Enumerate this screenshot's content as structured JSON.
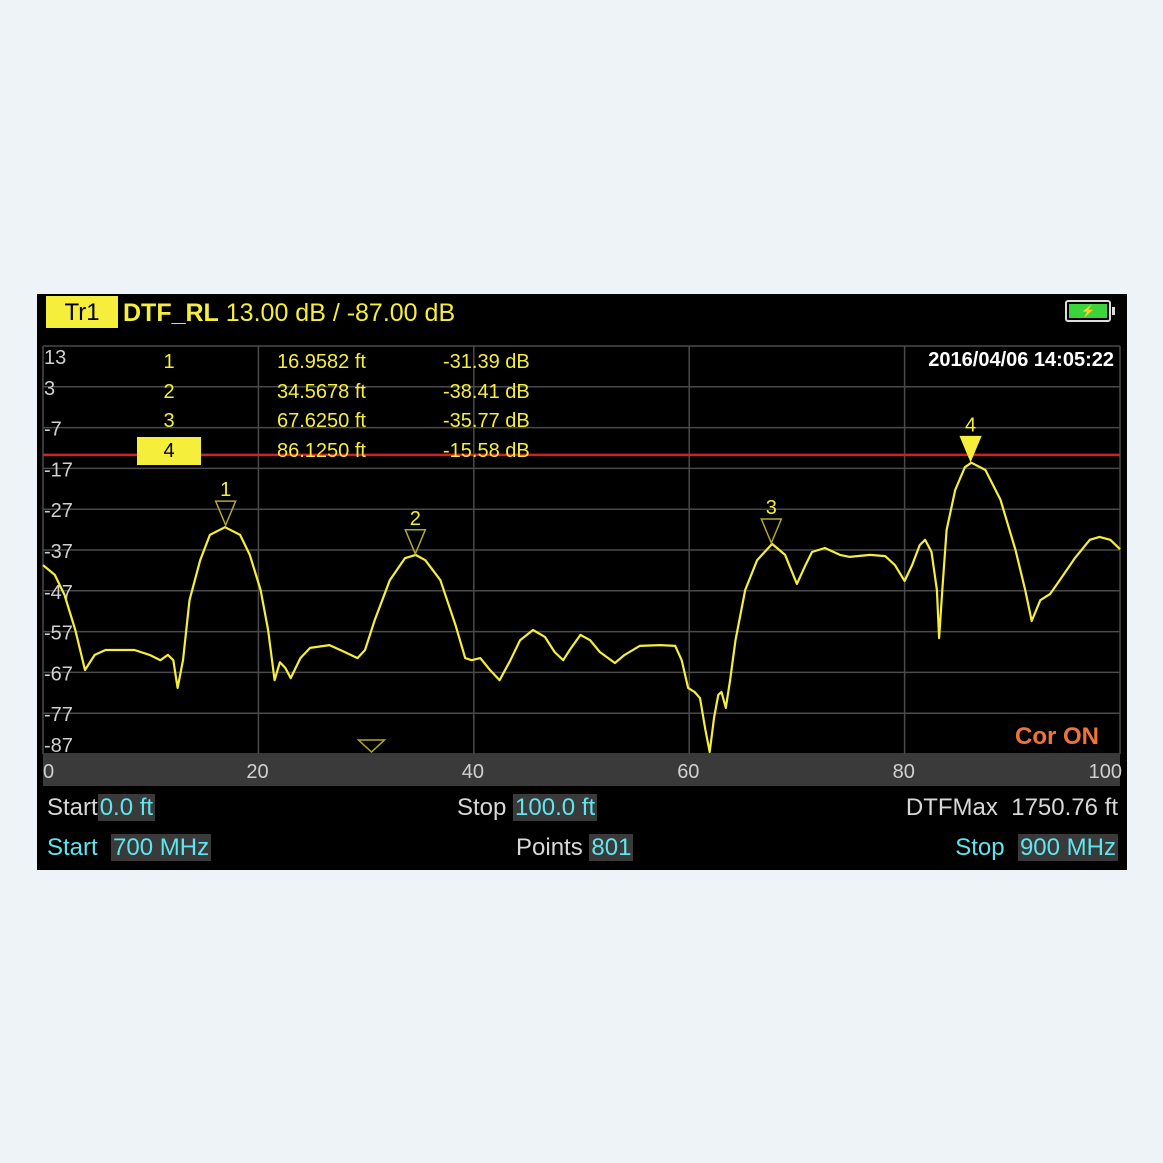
{
  "header": {
    "trace_badge": "Tr1",
    "measurement": "DTF_RL",
    "scale_text": "13.00 dB / -87.00 dB",
    "battery_icon": "battery-charging-icon",
    "datetime": "2016/04/06  14:05:22"
  },
  "markers": [
    {
      "id": "1",
      "distance": "16.9582 ft",
      "value": "-31.39 dB",
      "active": false
    },
    {
      "id": "2",
      "distance": "34.5678 ft",
      "value": "-38.41 dB",
      "active": false
    },
    {
      "id": "3",
      "distance": "67.6250 ft",
      "value": "-35.77 dB",
      "active": false
    },
    {
      "id": "4",
      "distance": "86.1250 ft",
      "value": "-15.58 dB",
      "active": true
    }
  ],
  "status": {
    "correction": "Cor ON"
  },
  "footer": {
    "row1": {
      "start_label": "Start",
      "start_value": "0.0 ft",
      "stop_label": "Stop",
      "stop_value": "100.0 ft",
      "dtfmax_label": "DTFMax",
      "dtfmax_value": "1750.76 ft"
    },
    "row2": {
      "start_label": "Start",
      "start_value": "700 MHz",
      "points_label": "Points",
      "points_value": "801",
      "stop_label": "Stop",
      "stop_value": "900 MHz"
    }
  },
  "colors": {
    "trace": "#f5ee3a",
    "limit_line": "#d42020",
    "cor": "#f0743a",
    "value": "#5ee6f0"
  },
  "chart_data": {
    "type": "line",
    "xlim": [
      0,
      100
    ],
    "ylim": [
      -87,
      13
    ],
    "x_ticks": [
      "0",
      "20",
      "40",
      "60",
      "80",
      "100"
    ],
    "y_ticks": [
      "13",
      "3",
      "-7",
      "-17",
      "-27",
      "-37",
      "-47",
      "-57",
      "-67",
      "-77",
      "-87"
    ],
    "grid": true,
    "limit_line": -13.7,
    "markers": [
      {
        "label": "1",
        "x": 16.9582,
        "y": -31.39
      },
      {
        "label": "2",
        "x": 34.5678,
        "y": -38.41
      },
      {
        "label": "3",
        "x": 67.625,
        "y": -35.77
      },
      {
        "label": "4",
        "x": 86.125,
        "y": -15.58,
        "active": true
      }
    ],
    "offscreen_marker_x": 30.5,
    "series": [
      {
        "x": [
          0,
          1.1,
          2.0,
          3.0,
          3.9,
          4.8,
          5.8,
          7.1,
          8.5,
          9.9,
          10.9,
          11.6,
          12.1,
          12.5,
          13.0,
          13.6,
          14.6,
          15.5,
          16.9,
          18.3,
          19.2,
          20.2,
          20.9,
          21.5,
          22.0,
          22.5,
          23.0,
          23.9,
          24.8,
          26.6,
          28.0,
          29.2,
          29.9,
          30.8,
          32.2,
          33.6,
          34.6,
          35.5,
          36.9,
          38.3,
          39.2,
          39.8,
          40.6,
          41.5,
          42.4,
          43.4,
          44.3,
          45.5,
          46.6,
          47.5,
          48.3,
          48.9,
          49.9,
          50.8,
          51.7,
          53.1,
          54.0,
          55.4,
          57.3,
          58.7,
          59.3,
          59.9,
          60.5,
          61.0,
          61.5,
          61.9,
          62.3,
          62.7,
          63.0,
          63.4,
          63.8,
          64.3,
          65.2,
          66.3,
          67.7,
          68.9,
          70.0,
          70.8,
          71.4,
          72.6,
          74.0,
          74.9,
          76.8,
          78.2,
          79.1,
          80.0,
          80.7,
          81.4,
          81.9,
          82.5,
          83.0,
          83.2,
          83.5,
          83.9,
          84.7,
          85.6,
          86.2,
          87.5,
          88.9,
          90.3,
          91.2,
          91.8,
          92.6,
          93.5,
          94.4,
          95.8,
          97.2,
          98.1,
          99.1,
          100
        ],
        "y": [
          -40.7,
          -43.1,
          -48.0,
          -56.6,
          -66.4,
          -62.7,
          -61.5,
          -61.5,
          -61.5,
          -62.7,
          -64.0,
          -62.7,
          -64.0,
          -70.8,
          -64.0,
          -49.3,
          -39.5,
          -33.3,
          -31.4,
          -33.3,
          -38.2,
          -46.8,
          -56.6,
          -68.9,
          -64.5,
          -65.9,
          -68.4,
          -63.5,
          -61.0,
          -60.3,
          -62.0,
          -63.5,
          -61.5,
          -54.2,
          -44.4,
          -39.0,
          -38.2,
          -39.5,
          -44.4,
          -55.4,
          -63.5,
          -64.0,
          -63.5,
          -66.4,
          -68.9,
          -64.0,
          -59.1,
          -56.6,
          -58.3,
          -62.0,
          -64.0,
          -61.5,
          -57.8,
          -59.1,
          -62.0,
          -64.7,
          -62.7,
          -60.5,
          -60.3,
          -60.5,
          -64.0,
          -70.8,
          -71.8,
          -73.3,
          -81.1,
          -86.5,
          -78.2,
          -72.5,
          -71.8,
          -75.7,
          -68.9,
          -59.1,
          -46.8,
          -39.5,
          -35.5,
          -38.2,
          -45.3,
          -40.7,
          -37.5,
          -36.5,
          -38.2,
          -38.7,
          -38.2,
          -38.5,
          -40.7,
          -44.6,
          -40.7,
          -35.8,
          -34.5,
          -37.5,
          -46.8,
          -58.6,
          -46.8,
          -32.1,
          -22.3,
          -16.7,
          -15.6,
          -17.4,
          -24.7,
          -37.0,
          -46.8,
          -54.4,
          -49.3,
          -47.8,
          -44.4,
          -39.0,
          -34.5,
          -33.8,
          -34.5,
          -36.8
        ]
      }
    ]
  }
}
